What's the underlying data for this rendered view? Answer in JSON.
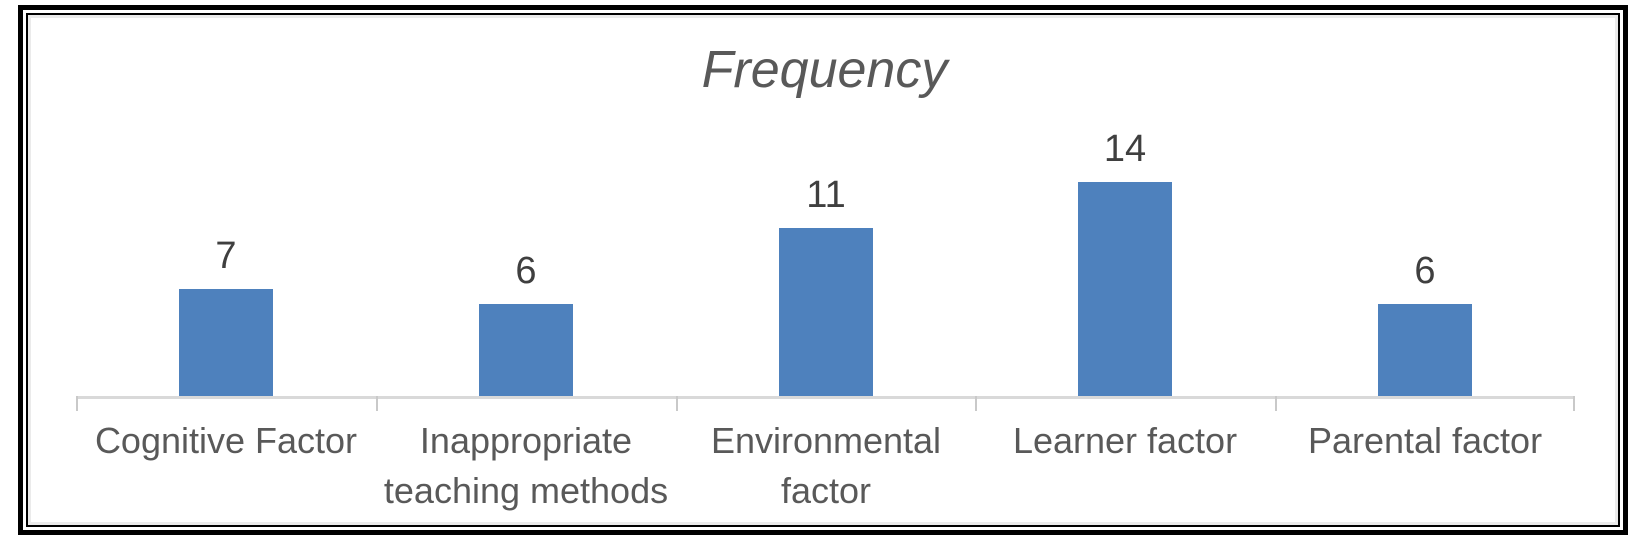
{
  "chart_data": {
    "type": "bar",
    "title": "Frequency",
    "categories": [
      "Cognitive Factor",
      "Inappropriate teaching methods",
      "Environmental factor",
      "Learner factor",
      "Parental factor"
    ],
    "values": [
      7,
      6,
      11,
      14,
      6
    ],
    "xlabel": "",
    "ylabel": "",
    "ylim": [
      0,
      14
    ],
    "grid": "off",
    "legend_position": "none",
    "y_axis_visible": false,
    "data_labels_visible": true
  },
  "colors": {
    "bar_fill": "#4e81bd",
    "axis_line": "#d9d9d9",
    "tick": "#c9c9c9",
    "title_text": "#595959",
    "category_text": "#595959",
    "value_label_text": "#3f3f3f",
    "frame_border": "#000000",
    "frame_inner_shadow": "#ebebeb"
  }
}
